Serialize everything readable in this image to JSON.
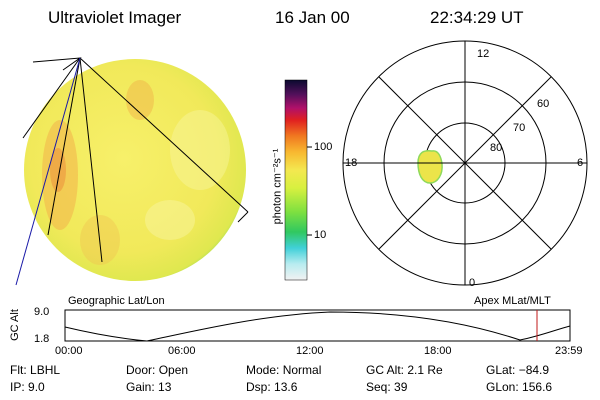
{
  "header": {
    "instrument": "Ultraviolet Imager",
    "date": "16 Jan 00",
    "time": "22:34:29 UT"
  },
  "colorbar": {
    "unit_label": "photon cm⁻²s⁻¹",
    "ticks": [
      "100",
      "10"
    ]
  },
  "polar_plot": {
    "mlt_labels": [
      "12",
      "18",
      "6",
      "0"
    ],
    "lat_labels": [
      "60",
      "70",
      "80"
    ]
  },
  "left_panel_label": "Geographic Lat/Lon",
  "right_panel_label": "Apex MLat/MLT",
  "altitude_plot": {
    "ylabel": "GC Alt",
    "y_ticks": [
      "9.0",
      "1.8"
    ],
    "x_ticks": [
      "00:00",
      "06:00",
      "12:00",
      "18:00",
      "23:59"
    ]
  },
  "info": {
    "row1": [
      {
        "key": "Flt:",
        "value": "LBHL"
      },
      {
        "key": "Door:",
        "value": "Open"
      },
      {
        "key": "Mode:",
        "value": "Normal"
      },
      {
        "key": "GC Alt:",
        "value": "2.1 Re"
      },
      {
        "key": "GLat:",
        "value": "−84.9"
      }
    ],
    "row2": [
      {
        "key": "IP:",
        "value": "9.0"
      },
      {
        "key": "Gain:",
        "value": "13"
      },
      {
        "key": "Dsp:",
        "value": "13.6"
      },
      {
        "key": "Seq:",
        "value": "39"
      },
      {
        "key": "GLon:",
        "value": "156.6"
      }
    ]
  },
  "colors": {
    "disk_base": "#f2ee5c",
    "disk_edge": "#7ed957",
    "oval": "#e9e84a",
    "marker": "#c01818"
  }
}
